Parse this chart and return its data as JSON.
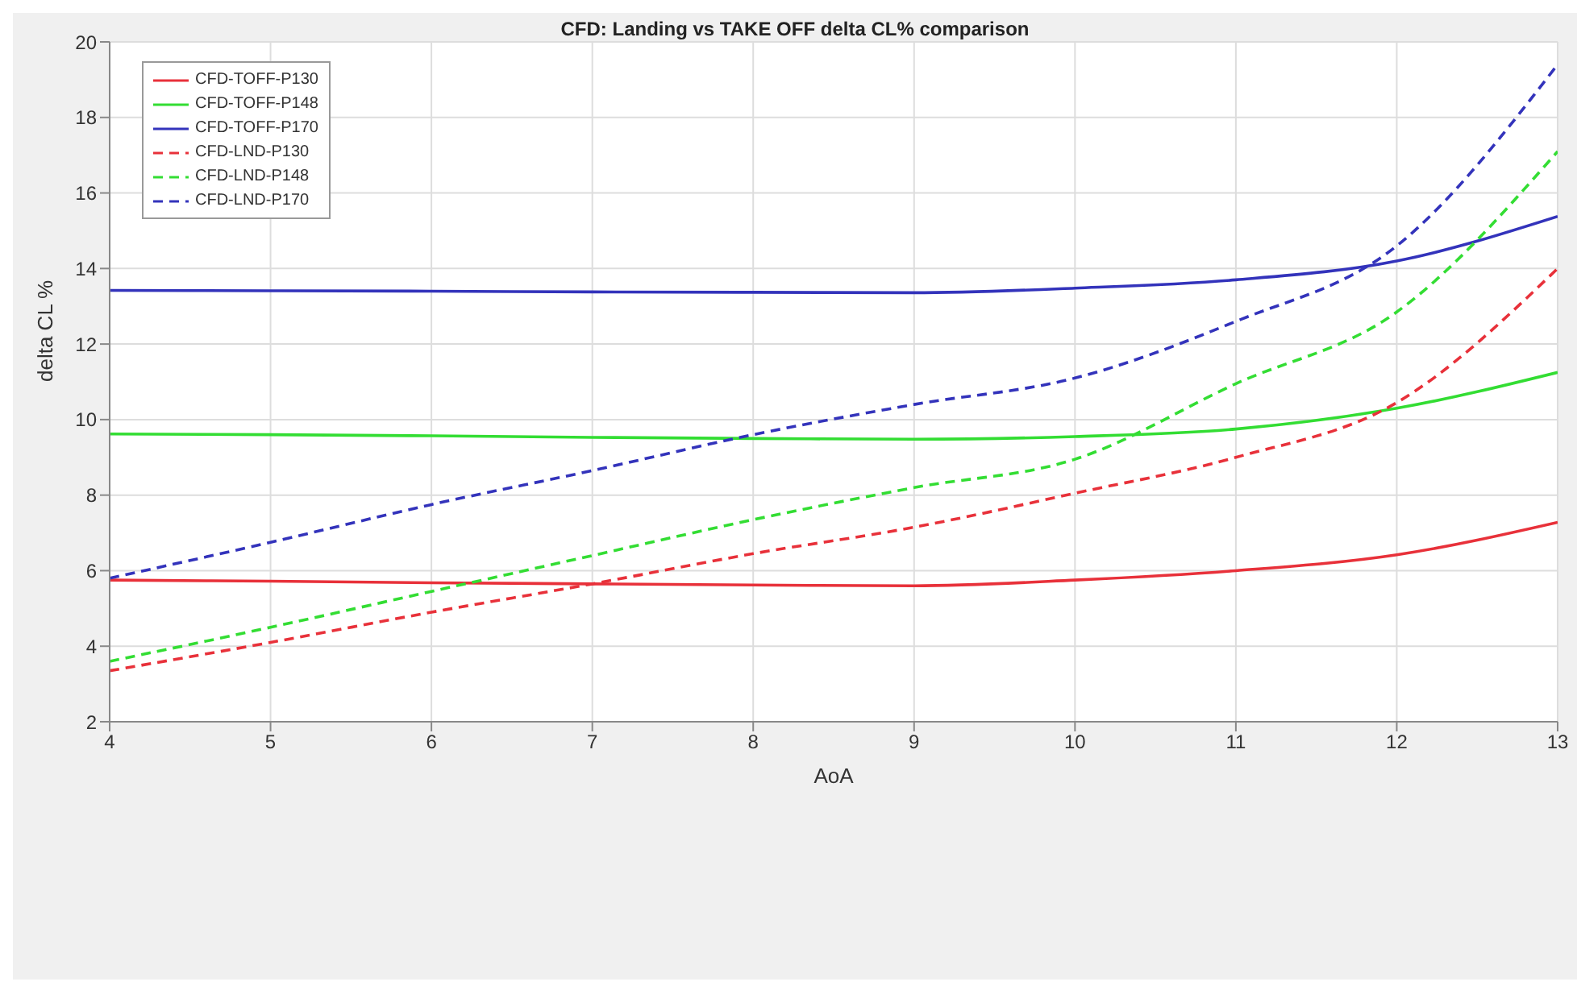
{
  "chart_data": {
    "type": "line",
    "title": "CFD: Landing vs TAKE OFF delta CL% comparison",
    "xlabel": "AoA",
    "ylabel": "delta CL %",
    "x": [
      4,
      5,
      6,
      7,
      8,
      9,
      10,
      11,
      12,
      13
    ],
    "series": [
      {
        "name": "CFD-TOFF-P130",
        "color": "#e8313a",
        "line_style": "solid",
        "values": [
          5.75,
          5.72,
          5.68,
          5.65,
          5.62,
          5.6,
          5.75,
          6.0,
          6.42,
          7.28
        ]
      },
      {
        "name": "CFD-TOFF-P148",
        "color": "#33dd33",
        "line_style": "solid",
        "values": [
          9.62,
          9.6,
          9.57,
          9.53,
          9.5,
          9.48,
          9.55,
          9.75,
          10.3,
          11.25
        ]
      },
      {
        "name": "CFD-TOFF-P170",
        "color": "#3333bb",
        "line_style": "solid",
        "values": [
          13.42,
          13.41,
          13.4,
          13.38,
          13.37,
          13.36,
          13.48,
          13.7,
          14.2,
          15.38
        ]
      },
      {
        "name": "CFD-LND-P130",
        "color": "#e8313a",
        "line_style": "dashed",
        "values": [
          3.35,
          4.1,
          4.9,
          5.65,
          6.45,
          7.15,
          8.05,
          9.0,
          10.45,
          14.0
        ]
      },
      {
        "name": "CFD-LND-P148",
        "color": "#33dd33",
        "line_style": "dashed",
        "values": [
          3.6,
          4.5,
          5.45,
          6.4,
          7.35,
          8.2,
          8.95,
          10.95,
          12.85,
          17.1
        ]
      },
      {
        "name": "CFD-LND-P170",
        "color": "#3333bb",
        "line_style": "dashed",
        "values": [
          5.8,
          6.75,
          7.75,
          8.65,
          9.6,
          10.4,
          11.1,
          12.6,
          14.6,
          19.4
        ]
      }
    ],
    "xlim": [
      4,
      13
    ],
    "xticks": [
      4,
      5,
      6,
      7,
      8,
      9,
      10,
      11,
      12,
      13
    ],
    "ylim": [
      2,
      20
    ],
    "yticks": [
      2,
      4,
      6,
      8,
      10,
      12,
      14,
      16,
      18,
      20
    ],
    "grid": true,
    "legend": "top left",
    "marker": "none"
  }
}
